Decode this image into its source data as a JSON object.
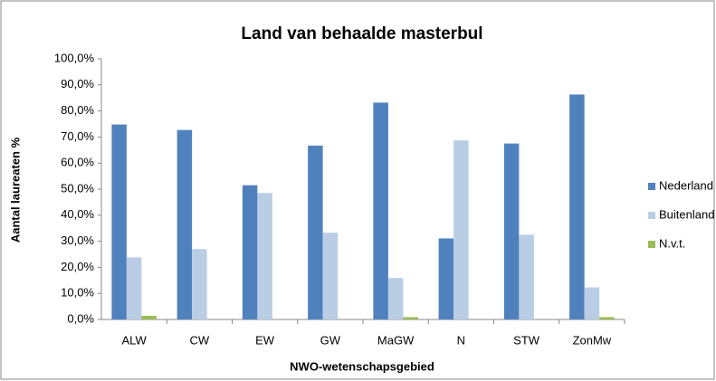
{
  "chart_data": {
    "type": "bar",
    "title": "Land van behaalde masterbul",
    "x_label": "NWO-wetenschapsgebied",
    "y_label": "Aantal laureaten %",
    "categories": [
      "ALW",
      "CW",
      "EW",
      "GW",
      "MaGW",
      "N",
      "STW",
      "ZonMw"
    ],
    "series": [
      {
        "name": "Nederland",
        "color": "#4f81bd",
        "values": [
          74.8,
          72.7,
          51.5,
          66.7,
          83.2,
          31.1,
          67.5,
          86.3
        ]
      },
      {
        "name": "Buitenland",
        "color": "#b9cde5",
        "values": [
          23.8,
          27.0,
          48.5,
          33.3,
          15.9,
          68.7,
          32.5,
          12.3
        ]
      },
      {
        "name": "N.v.t.",
        "color": "#9bbb59",
        "values": [
          1.4,
          0,
          0,
          0,
          0.9,
          0,
          0,
          0.9
        ]
      }
    ],
    "ylim": [
      0,
      100
    ],
    "yticks": [
      {
        "value": 0,
        "label": "0,0%"
      },
      {
        "value": 10,
        "label": "10,0%"
      },
      {
        "value": 20,
        "label": "20,0%"
      },
      {
        "value": 30,
        "label": "30,0%"
      },
      {
        "value": 40,
        "label": "40,0%"
      },
      {
        "value": 50,
        "label": "50,0%"
      },
      {
        "value": 60,
        "label": "60,0%"
      },
      {
        "value": 70,
        "label": "70,0%"
      },
      {
        "value": 80,
        "label": "80,0%"
      },
      {
        "value": 90,
        "label": "90,0%"
      },
      {
        "value": 100,
        "label": "100,0%"
      }
    ],
    "grid": false,
    "legend": "right"
  }
}
